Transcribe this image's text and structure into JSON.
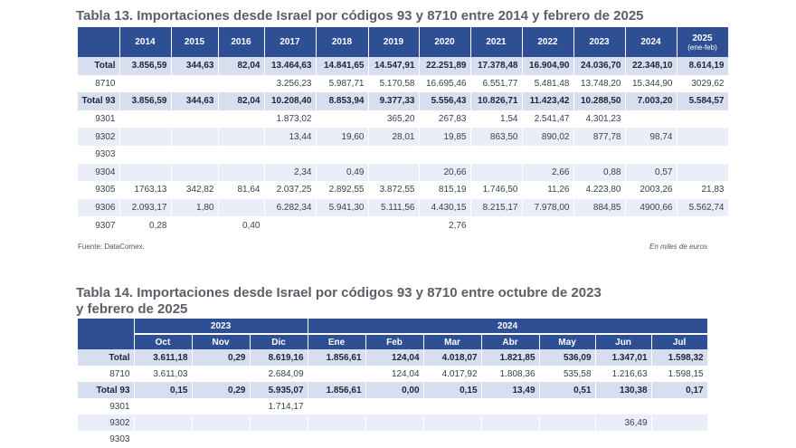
{
  "t13": {
    "title": "Tabla 13. Importaciones desde Israel por códigos 93 y 8710 entre 2014 y febrero de 2025",
    "columns": [
      "2014",
      "2015",
      "2016",
      "2017",
      "2018",
      "2019",
      "2020",
      "2021",
      "2022",
      "2023",
      "2024",
      "2025"
    ],
    "last_col_sub": "(ene-feb)",
    "rows": [
      {
        "label": "Total",
        "style": "bold",
        "values": [
          "3.856,59",
          "344,63",
          "82,04",
          "13.464,63",
          "14.841,65",
          "14.547,91",
          "22.251,89",
          "17.378,48",
          "16.904,90",
          "24.036,70",
          "22.348,10",
          "8.614,19"
        ]
      },
      {
        "label": "8710",
        "style": "plain",
        "values": [
          "",
          "",
          "",
          "3.256,23",
          "5.987,71",
          "5.170,58",
          "16.695,46",
          "6.551,77",
          "5.481,48",
          "13.748,20",
          "15.344,90",
          "3029,62"
        ]
      },
      {
        "label": "Total 93",
        "style": "bold",
        "values": [
          "3.856,59",
          "344,63",
          "82,04",
          "10.208,40",
          "8.853,94",
          "9.377,33",
          "5.556,43",
          "10.826,71",
          "11.423,42",
          "10.288,50",
          "7.003,20",
          "5.584,57"
        ]
      },
      {
        "label": "9301",
        "style": "plain",
        "values": [
          "",
          "",
          "",
          "1.873,02",
          "",
          "365,20",
          "267,83",
          "1,54",
          "2.541,47",
          "4.301,23",
          "",
          ""
        ]
      },
      {
        "label": "9302",
        "style": "alt",
        "values": [
          "",
          "",
          "",
          "13,44",
          "19,60",
          "28,01",
          "19,85",
          "863,50",
          "890,02",
          "877,78",
          "98,74",
          ""
        ]
      },
      {
        "label": "9303",
        "style": "plain",
        "values": [
          "",
          "",
          "",
          "",
          "",
          "",
          "",
          "",
          "",
          "",
          "",
          ""
        ]
      },
      {
        "label": "9304",
        "style": "alt",
        "values": [
          "",
          "",
          "",
          "2,34",
          "0,49",
          "",
          "20,66",
          "",
          "2,66",
          "0,88",
          "0,57",
          ""
        ]
      },
      {
        "label": "9305",
        "style": "plain",
        "values": [
          "1763,13",
          "342,82",
          "81,64",
          "2.037,25",
          "2.892,55",
          "3.872,55",
          "815,19",
          "1.746,50",
          "11,26",
          "4.223,80",
          "2003,26",
          "21,83"
        ]
      },
      {
        "label": "9306",
        "style": "alt",
        "values": [
          "2.093,17",
          "1,80",
          "",
          "6.282,34",
          "5.941,30",
          "5.111,56",
          "4.430,15",
          "8.215,17",
          "7.978,00",
          "884,85",
          "4900,66",
          "5.562,74"
        ]
      },
      {
        "label": "9307",
        "style": "plain",
        "values": [
          "0,28",
          "",
          "0,40",
          "",
          "",
          "",
          "2,76",
          "",
          "",
          "",
          "",
          ""
        ]
      }
    ],
    "source": "Fuente: DataComex.",
    "unit": "En miles de euros"
  },
  "t14": {
    "title_line1": "Tabla 14. Importaciones desde Israel por códigos 93 y 8710 entre octubre de 2023",
    "title_line2": "y febrero de 2025",
    "year1": "2023",
    "year2": "2024",
    "months": [
      "Oct",
      "Nov",
      "Dic",
      "Ene",
      "Feb",
      "Mar",
      "Abr",
      "May",
      "Jun",
      "Jul"
    ],
    "rows": [
      {
        "label": "Total",
        "style": "bold",
        "values": [
          "3.611,18",
          "0,29",
          "8.619,16",
          "1.856,61",
          "124,04",
          "4.018,07",
          "1.821,85",
          "536,09",
          "1.347,01",
          "1.598,32"
        ]
      },
      {
        "label": "8710",
        "style": "plain",
        "values": [
          "3.611,03",
          "",
          "2.684,09",
          "",
          "124,04",
          "4.017,92",
          "1.808,36",
          "535,58",
          "1.216,63",
          "1.598,15"
        ]
      },
      {
        "label": "Total 93",
        "style": "bold",
        "values": [
          "0,15",
          "0,29",
          "5.935,07",
          "1.856,61",
          "0,00",
          "0,15",
          "13,49",
          "0,51",
          "130,38",
          "0,17"
        ]
      },
      {
        "label": "9301",
        "style": "plain",
        "values": [
          "",
          "",
          "1.714,17",
          "",
          "",
          "",
          "",
          "",
          "",
          ""
        ]
      },
      {
        "label": "9302",
        "style": "alt",
        "values": [
          "",
          "",
          "",
          "",
          "",
          "",
          "",
          "",
          "36,49",
          ""
        ]
      },
      {
        "label": "9303",
        "style": "plain",
        "values": [
          "",
          "",
          "",
          "",
          "",
          "",
          "",
          "",
          "",
          ""
        ]
      }
    ]
  }
}
